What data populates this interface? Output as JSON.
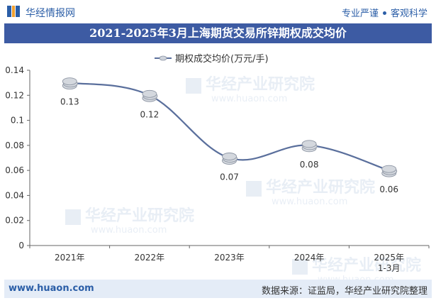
{
  "header": {
    "brand": "华经情报网",
    "slogan_left": "专业严谨",
    "slogan_right": "客观科学"
  },
  "title": "2021-2025年3月上海期货交易所锌期权成交均价",
  "footer": {
    "url": "www.huaon.com",
    "source": "数据来源：证监局，华经产业研究院整理"
  },
  "watermark": {
    "text_cn": "华经产业研究院",
    "text_en": "www.huaon.com"
  },
  "colors": {
    "brand_blue": "#2b5ea7",
    "title_bg": "#3d5ba3",
    "line": "#5a6f9c",
    "footer_bg": "#e4ecf7"
  },
  "chart_data": {
    "type": "line",
    "title": "2021-2025年3月上海期货交易所锌期权成交均价",
    "categories": [
      "2021年",
      "2022年",
      "2023年",
      "2024年",
      "2025年\n1-3月"
    ],
    "series": [
      {
        "name": "期权成交均价(万元/手)",
        "values": [
          0.13,
          0.12,
          0.07,
          0.08,
          0.06
        ]
      }
    ],
    "data_labels": [
      "0.13",
      "0.12",
      "0.07",
      "0.08",
      "0.06"
    ],
    "yticks": [
      "0",
      "0.02",
      "0.04",
      "0.06",
      "0.08",
      "0.1",
      "0.12",
      "0.14"
    ],
    "ylim": [
      0,
      0.14
    ],
    "legend_position": "top-center",
    "grid": false,
    "smooth": true,
    "marker": "coin-stack"
  }
}
